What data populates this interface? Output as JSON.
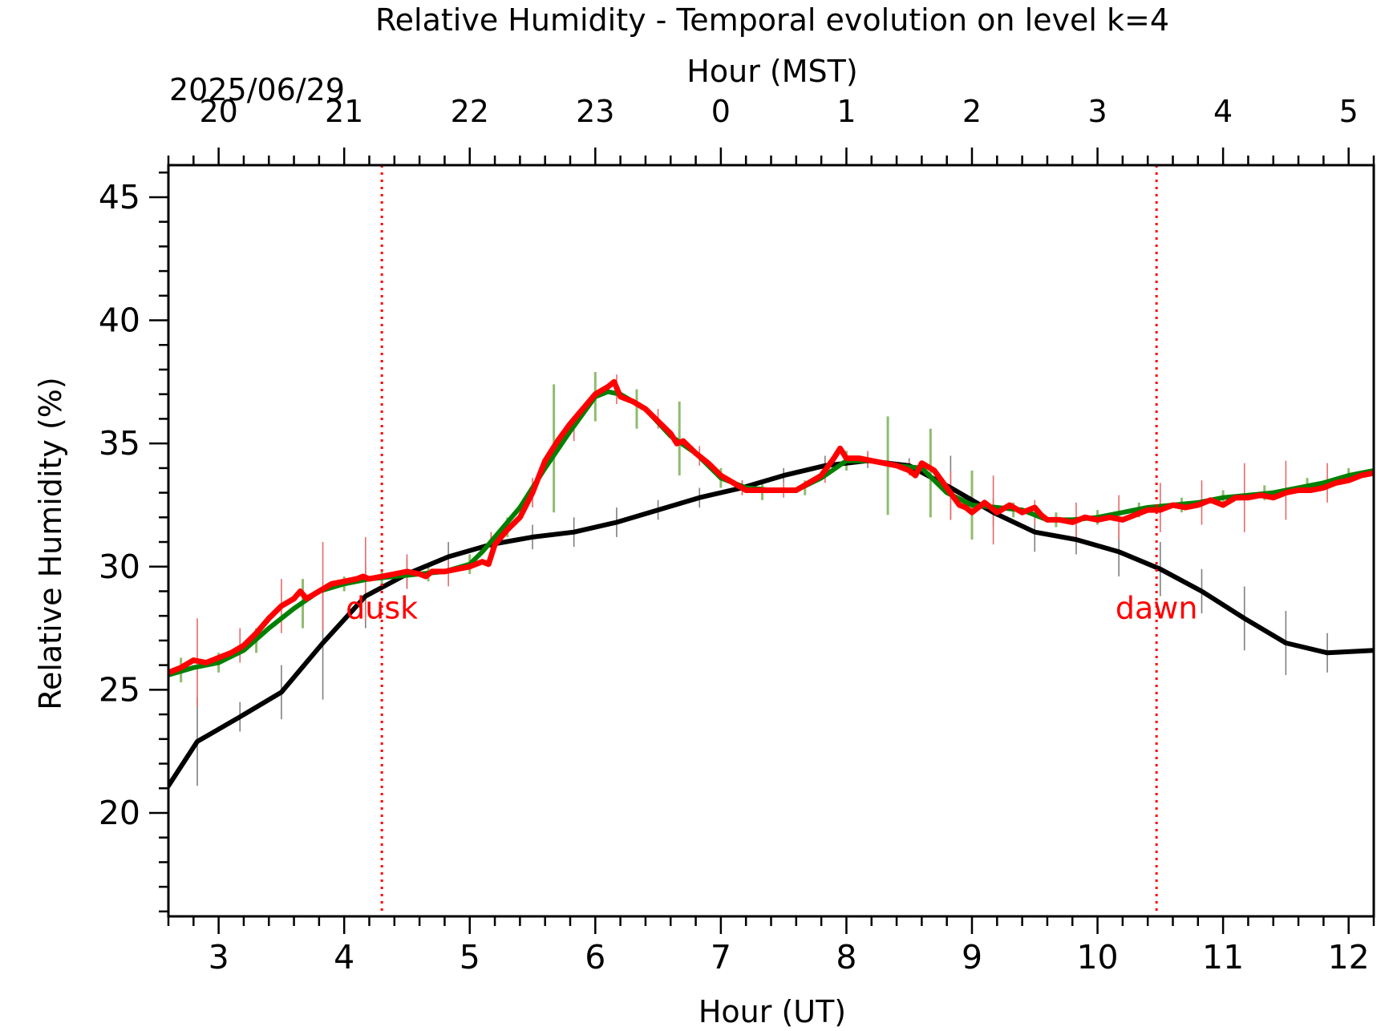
{
  "chart_data": {
    "type": "line",
    "title": "Relative Humidity - Temporal evolution on level k=4",
    "xlabel": "Hour (UT)",
    "x2label": "Hour (MST)",
    "date_label": "2025/06/29",
    "ylabel": "Relative Humidity (%)",
    "xlim": [
      2.6,
      12.2
    ],
    "ylim": [
      15.8,
      46.3
    ],
    "x_ticks": [
      3,
      4,
      5,
      6,
      7,
      8,
      9,
      10,
      11,
      12
    ],
    "x_tick_labels": [
      "3",
      "4",
      "5",
      "6",
      "7",
      "8",
      "9",
      "10",
      "11",
      "12"
    ],
    "x2_ticks": [
      3,
      4,
      5,
      6,
      7,
      8,
      9,
      10,
      11,
      12
    ],
    "x2_tick_labels": [
      "20",
      "21",
      "22",
      "23",
      "0",
      "1",
      "2",
      "3",
      "4",
      "5"
    ],
    "y_ticks": [
      20,
      25,
      30,
      35,
      40,
      45
    ],
    "y_tick_labels": [
      "20",
      "25",
      "30",
      "35",
      "40",
      "45"
    ],
    "grid": false,
    "legend": "none",
    "vlines": [
      {
        "x": 4.3,
        "label": "dusk",
        "color": "#ff0000",
        "style": "dotted"
      },
      {
        "x": 10.47,
        "label": "dawn",
        "color": "#ff0000",
        "style": "dotted"
      }
    ],
    "series": [
      {
        "color": "#000000",
        "x": [
          2.6,
          2.83,
          3.17,
          3.5,
          3.83,
          4.17,
          4.5,
          4.83,
          5.17,
          5.5,
          5.83,
          6.17,
          6.5,
          6.83,
          7.17,
          7.5,
          7.83,
          8.17,
          8.5,
          8.83,
          9.17,
          9.5,
          9.83,
          10.17,
          10.5,
          10.83,
          11.17,
          11.5,
          11.83,
          12.2
        ],
        "y": [
          21.1,
          22.9,
          23.9,
          24.9,
          26.9,
          28.8,
          29.7,
          30.4,
          30.9,
          31.2,
          31.4,
          31.8,
          32.3,
          32.8,
          33.2,
          33.7,
          34.1,
          34.3,
          34.1,
          33.2,
          32.2,
          31.4,
          31.1,
          30.6,
          29.9,
          29.0,
          27.9,
          26.9,
          26.5,
          26.6
        ]
      },
      {
        "color": "#008000",
        "x": [
          2.6,
          2.8,
          3.0,
          3.2,
          3.4,
          3.6,
          3.8,
          4.0,
          4.2,
          4.4,
          4.6,
          4.8,
          5.0,
          5.1,
          5.2,
          5.4,
          5.6,
          5.8,
          6.0,
          6.1,
          6.2,
          6.4,
          6.6,
          6.8,
          7.0,
          7.2,
          7.4,
          7.6,
          7.8,
          8.0,
          8.2,
          8.4,
          8.6,
          8.8,
          9.0,
          9.2,
          9.4,
          9.6,
          9.8,
          10.0,
          10.2,
          10.4,
          10.6,
          10.8,
          11.0,
          11.2,
          11.4,
          11.6,
          11.8,
          12.0,
          12.2
        ],
        "y": [
          25.6,
          25.9,
          26.1,
          26.6,
          27.5,
          28.3,
          29.0,
          29.3,
          29.5,
          29.6,
          29.7,
          29.8,
          30.1,
          30.6,
          31.2,
          32.4,
          34.0,
          35.5,
          36.9,
          37.1,
          37.0,
          36.4,
          35.3,
          34.6,
          33.6,
          33.2,
          33.1,
          33.1,
          33.6,
          34.3,
          34.3,
          34.1,
          34.0,
          33.0,
          32.5,
          32.4,
          32.3,
          31.9,
          31.9,
          32.0,
          32.2,
          32.4,
          32.5,
          32.6,
          32.8,
          32.9,
          33.0,
          33.2,
          33.4,
          33.7,
          33.9
        ]
      },
      {
        "color": "#ff0000",
        "x": [
          2.6,
          2.7,
          2.8,
          2.9,
          3.0,
          3.1,
          3.2,
          3.3,
          3.4,
          3.5,
          3.6,
          3.65,
          3.7,
          3.8,
          3.9,
          4.0,
          4.1,
          4.15,
          4.2,
          4.3,
          4.4,
          4.5,
          4.6,
          4.65,
          4.7,
          4.8,
          4.9,
          5.0,
          5.1,
          5.15,
          5.2,
          5.3,
          5.4,
          5.5,
          5.6,
          5.7,
          5.8,
          5.9,
          6.0,
          6.1,
          6.15,
          6.2,
          6.3,
          6.4,
          6.5,
          6.6,
          6.65,
          6.7,
          6.8,
          6.9,
          7.0,
          7.1,
          7.2,
          7.3,
          7.4,
          7.5,
          7.6,
          7.7,
          7.8,
          7.9,
          7.95,
          8.0,
          8.1,
          8.2,
          8.3,
          8.4,
          8.5,
          8.55,
          8.6,
          8.7,
          8.8,
          8.9,
          8.95,
          9.0,
          9.1,
          9.2,
          9.3,
          9.4,
          9.5,
          9.55,
          9.6,
          9.7,
          9.8,
          9.9,
          10.0,
          10.1,
          10.2,
          10.3,
          10.4,
          10.5,
          10.6,
          10.7,
          10.8,
          10.9,
          11.0,
          11.1,
          11.2,
          11.3,
          11.4,
          11.5,
          11.6,
          11.7,
          11.8,
          11.9,
          12.0,
          12.1,
          12.2
        ],
        "y": [
          25.7,
          25.9,
          26.2,
          26.1,
          26.3,
          26.5,
          26.8,
          27.3,
          27.9,
          28.4,
          28.7,
          29.0,
          28.7,
          29.0,
          29.3,
          29.4,
          29.5,
          29.6,
          29.5,
          29.6,
          29.7,
          29.8,
          29.7,
          29.6,
          29.8,
          29.8,
          29.9,
          30.0,
          30.2,
          30.1,
          30.9,
          31.5,
          32.0,
          33.0,
          34.3,
          35.1,
          35.8,
          36.4,
          37.0,
          37.3,
          37.5,
          36.9,
          36.7,
          36.4,
          35.9,
          35.4,
          35.0,
          35.1,
          34.6,
          34.2,
          33.7,
          33.4,
          33.1,
          33.1,
          33.1,
          33.1,
          33.1,
          33.4,
          33.7,
          34.4,
          34.8,
          34.4,
          34.4,
          34.3,
          34.2,
          34.1,
          33.9,
          33.7,
          34.2,
          33.9,
          33.2,
          32.5,
          32.4,
          32.2,
          32.6,
          32.2,
          32.5,
          32.2,
          32.4,
          32.1,
          31.9,
          31.9,
          31.8,
          32.0,
          31.9,
          32.0,
          31.9,
          32.1,
          32.3,
          32.3,
          32.5,
          32.4,
          32.5,
          32.7,
          32.5,
          32.8,
          32.8,
          32.9,
          32.8,
          33.0,
          33.1,
          33.1,
          33.2,
          33.4,
          33.5,
          33.7,
          33.8
        ]
      }
    ],
    "error_bars": [
      {
        "color": "#808080",
        "x": [
          2.83,
          3.17,
          3.5,
          3.83,
          4.17,
          4.5,
          4.83,
          5.17,
          5.5,
          5.83,
          6.17,
          6.5,
          6.83,
          7.17,
          7.5,
          7.83,
          8.17,
          8.5,
          8.83,
          9.17,
          9.5,
          9.83,
          10.17,
          10.5,
          10.83,
          11.17,
          11.5,
          11.83
        ],
        "y": [
          22.9,
          23.9,
          24.9,
          26.9,
          28.8,
          29.7,
          30.4,
          30.9,
          31.2,
          31.4,
          31.8,
          32.3,
          32.8,
          33.2,
          33.7,
          34.1,
          34.3,
          34.1,
          33.2,
          32.2,
          31.4,
          31.1,
          30.6,
          29.9,
          29.0,
          27.9,
          26.9,
          26.5
        ],
        "err": [
          1.8,
          0.6,
          1.1,
          2.3,
          1.3,
          0.6,
          0.6,
          0.5,
          0.5,
          0.6,
          0.6,
          0.4,
          0.4,
          0.3,
          0.3,
          0.4,
          0.3,
          0.3,
          1.3,
          0.6,
          0.8,
          0.6,
          1.0,
          1.1,
          0.9,
          1.3,
          1.3,
          0.8
        ]
      },
      {
        "color": "#8fbc6f",
        "x": [
          2.7,
          3.0,
          3.3,
          3.67,
          4.0,
          4.3,
          4.67,
          5.0,
          5.3,
          5.67,
          6.0,
          6.33,
          6.67,
          7.0,
          7.33,
          7.67,
          8.0,
          8.33,
          8.67,
          9.0,
          9.33,
          9.67,
          10.0,
          10.33,
          10.67,
          11.0,
          11.33,
          11.67,
          12.0
        ],
        "y": [
          25.8,
          26.1,
          27.0,
          28.5,
          29.3,
          29.5,
          29.7,
          30.1,
          31.6,
          34.8,
          36.9,
          36.4,
          35.2,
          33.6,
          33.1,
          33.2,
          34.3,
          34.1,
          33.8,
          32.5,
          32.3,
          31.9,
          32.0,
          32.3,
          32.5,
          32.8,
          33.0,
          33.3,
          33.7
        ],
        "err": [
          0.5,
          0.4,
          0.5,
          1.0,
          0.3,
          0.3,
          0.3,
          0.4,
          0.4,
          2.6,
          1.0,
          0.8,
          1.5,
          0.4,
          0.4,
          0.3,
          0.4,
          2.0,
          1.8,
          1.4,
          0.3,
          0.3,
          0.3,
          0.3,
          0.3,
          0.3,
          0.3,
          0.3,
          0.3
        ]
      },
      {
        "color": "#e86a6a",
        "x": [
          2.83,
          3.17,
          3.5,
          3.83,
          4.17,
          4.5,
          4.83,
          5.17,
          5.5,
          5.83,
          6.17,
          6.5,
          6.83,
          7.17,
          7.5,
          7.83,
          8.17,
          8.5,
          8.83,
          9.17,
          9.5,
          9.83,
          10.17,
          10.5,
          10.83,
          11.17,
          11.5,
          11.83
        ],
        "y": [
          26.1,
          26.8,
          28.4,
          29.2,
          29.5,
          29.8,
          29.8,
          30.9,
          33.0,
          35.6,
          37.2,
          36.0,
          34.5,
          33.2,
          33.1,
          33.8,
          34.4,
          34.0,
          32.9,
          32.3,
          32.2,
          31.9,
          32.0,
          32.4,
          32.6,
          32.8,
          33.1,
          33.4
        ],
        "err": [
          1.8,
          0.7,
          1.1,
          1.8,
          1.7,
          0.7,
          0.6,
          0.5,
          0.6,
          0.5,
          0.6,
          0.4,
          0.4,
          0.3,
          0.3,
          0.4,
          0.3,
          0.3,
          1.0,
          1.4,
          0.5,
          0.7,
          0.9,
          1.0,
          0.9,
          1.4,
          1.2,
          0.8
        ]
      }
    ]
  }
}
